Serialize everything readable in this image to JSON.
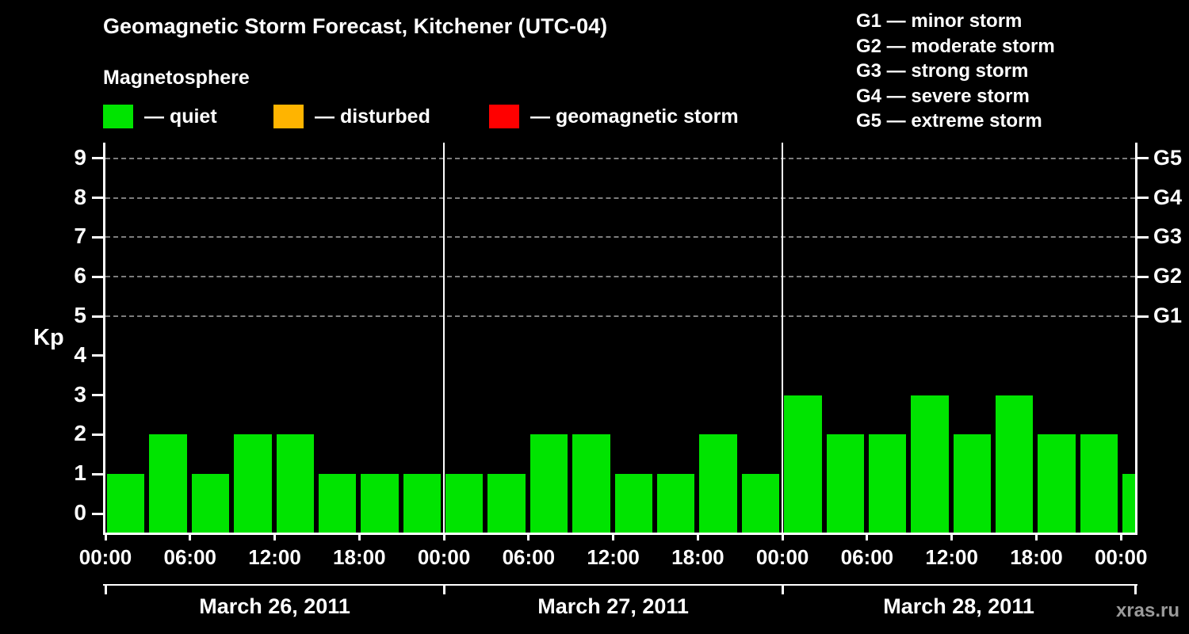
{
  "header": {
    "title": "Geomagnetic Storm Forecast, Kitchener (UTC-04)",
    "subtitle": "Magnetosphere"
  },
  "legend": {
    "items": [
      {
        "label": "— quiet",
        "color": "#00e400"
      },
      {
        "label": "— disturbed",
        "color": "#ffb400"
      },
      {
        "label": "— geomagnetic storm",
        "color": "#ff0000"
      }
    ]
  },
  "g_legend": {
    "items": [
      "G1 — minor storm",
      "G2 — moderate storm",
      "G3 — strong storm",
      "G4 — severe storm",
      "G5 — extreme storm"
    ]
  },
  "watermark": "xras.ru",
  "chart_data": {
    "type": "bar",
    "title": "Geomagnetic Storm Forecast, Kitchener (UTC-04)",
    "ylabel": "Kp",
    "ylim": [
      0,
      9
    ],
    "kp_ticks": [
      0,
      1,
      2,
      3,
      4,
      5,
      6,
      7,
      8,
      9
    ],
    "g_ticks": [
      {
        "label": "G1",
        "kp": 5
      },
      {
        "label": "G2",
        "kp": 6
      },
      {
        "label": "G3",
        "kp": 7
      },
      {
        "label": "G4",
        "kp": 8
      },
      {
        "label": "G5",
        "kp": 9
      }
    ],
    "gridline_kp": [
      5,
      6,
      7,
      8,
      9
    ],
    "interval_hours": 3,
    "time_labels": [
      "00:00",
      "06:00",
      "12:00",
      "18:00",
      "00:00",
      "06:00",
      "12:00",
      "18:00",
      "00:00",
      "06:00",
      "12:00",
      "18:00",
      "00:00"
    ],
    "days": [
      {
        "date": "March 26, 2011",
        "kp_values": [
          1,
          2,
          1,
          2,
          2,
          1,
          1,
          1
        ]
      },
      {
        "date": "March 27, 2011",
        "kp_values": [
          1,
          1,
          2,
          2,
          1,
          1,
          2,
          1
        ]
      },
      {
        "date": "March 28, 2011",
        "kp_values": [
          3,
          2,
          2,
          3,
          2,
          3,
          2,
          2
        ]
      }
    ],
    "next_interval_partial_kp": 1,
    "colors": {
      "quiet": "#00e400",
      "disturbed": "#ffb400",
      "storm": "#ff0000"
    },
    "color_rules": {
      "quiet_max_kp": 3,
      "disturbed_max_kp": 4
    },
    "legend_position": "top",
    "grid": "dashed horizontal at G-storm levels only",
    "background": "#000000"
  }
}
